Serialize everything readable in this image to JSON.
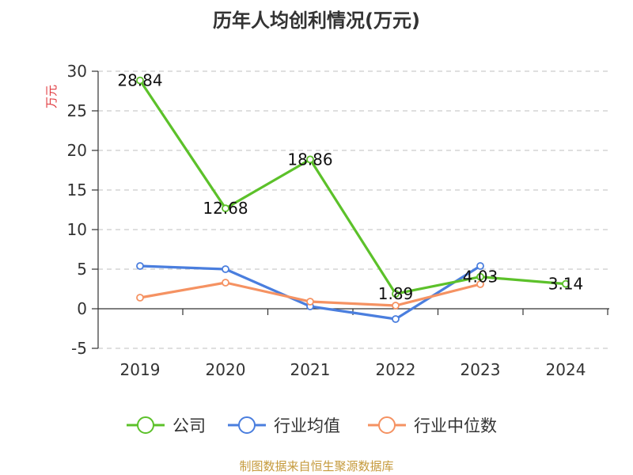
{
  "title": "历年人均创利情况(万元)",
  "source_note": "制图数据来自恒生聚源数据库",
  "colors": {
    "grid": "#cccccc",
    "axis": "#333333",
    "ylabel": "#e0393e"
  },
  "chart_data": {
    "type": "line",
    "title": "历年人均创利情况(万元)",
    "ylabel": "万元",
    "xlabel": "",
    "categories": [
      "2019",
      "2020",
      "2021",
      "2022",
      "2023",
      "2024"
    ],
    "ylim": [
      -5,
      30
    ],
    "yticks": [
      -5,
      0,
      5,
      10,
      15,
      20,
      25,
      30
    ],
    "ytick_labels": [
      "-5",
      "0",
      "5",
      "10",
      "15",
      "20",
      "25",
      "30"
    ],
    "grid": true,
    "legend_position": "bottom",
    "series": [
      {
        "name": "公司",
        "color": "#5cc12a",
        "values": [
          28.84,
          12.68,
          18.86,
          1.89,
          4.03,
          3.14
        ],
        "labels": [
          "28.84",
          "12.68",
          "18.86",
          "1.89",
          "4.03",
          "3.14"
        ]
      },
      {
        "name": "行业均值",
        "color": "#4a7ede",
        "values": [
          5.4,
          5.0,
          0.3,
          -1.3,
          5.4,
          null
        ]
      },
      {
        "name": "行业中位数",
        "color": "#f59262",
        "values": [
          1.4,
          3.3,
          0.9,
          0.4,
          3.1,
          null
        ]
      }
    ]
  }
}
